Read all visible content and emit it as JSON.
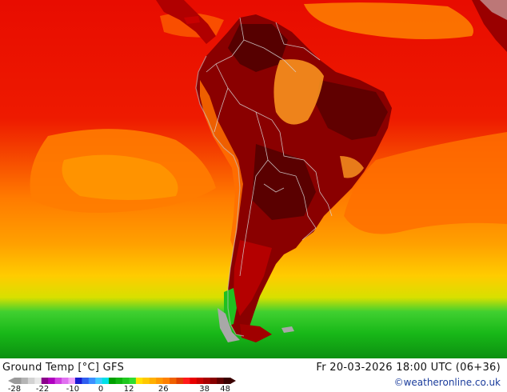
{
  "map": {
    "title": "Ground Temp [°C] GFS",
    "datetime": "Fr 20-03-2026 18:00 UTC (06+36)",
    "credit": "©weatheronline.co.uk",
    "legend": {
      "ticks": [
        "-28",
        "-22",
        "-10",
        "0",
        "12",
        "26",
        "38",
        "48"
      ],
      "colors": [
        "#9a9a9a",
        "#b4b4b4",
        "#d2d2d2",
        "#e8e8e8",
        "#8b008b",
        "#b000c0",
        "#d040e0",
        "#e070f0",
        "#f0a0f8",
        "#1a1ad0",
        "#2f5ff0",
        "#3a90ff",
        "#3ec8ff",
        "#00e0e8",
        "#00a000",
        "#10b410",
        "#20c820",
        "#30dc30",
        "#ffe000",
        "#ffc800",
        "#ffb000",
        "#ff9800",
        "#ff8000",
        "#f06000",
        "#e04000",
        "#ff1a1a",
        "#e80000",
        "#c80000",
        "#a80000",
        "#880000",
        "#600000",
        "#3a0000"
      ]
    },
    "colors": {
      "ocean_warm": "#e00c00",
      "ocean_orange": "#ff7e00",
      "ocean_yellow": "#ffb000",
      "ocean_green": "#20c820",
      "land_hot": "#8a0000",
      "land_dark": "#5e0000",
      "land_light": "#ffa030"
    }
  }
}
